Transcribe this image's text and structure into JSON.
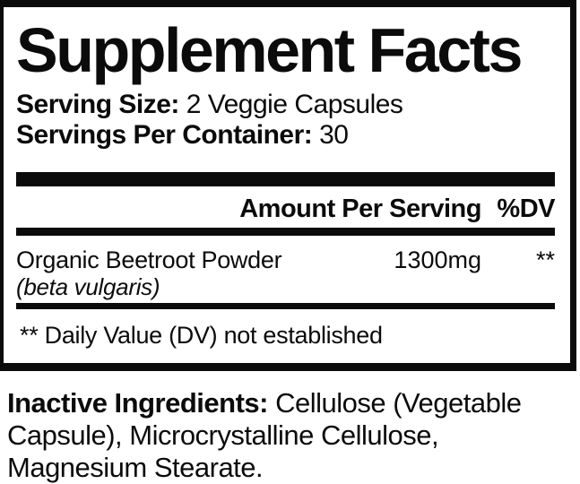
{
  "panel": {
    "title": "Supplement Facts",
    "serving_size": {
      "label": "Serving Size:",
      "value": "2 Veggie Capsules"
    },
    "servings_per_container": {
      "label": "Servings Per Container:",
      "value": "30"
    },
    "header": {
      "amount": "Amount Per Serving",
      "dv": "%DV"
    },
    "rows": [
      {
        "name": "Organic Beetroot Powder",
        "latin": "(beta vulgaris)",
        "amount": "1300mg",
        "dv": "**"
      }
    ],
    "footnote": "** Daily Value (DV) not established"
  },
  "inactive_ingredients": {
    "label": "Inactive Ingredients:",
    "value": "Cellulose (Vegetable Capsule), Microcrystalline Cellulose, Magnesium Stearate."
  },
  "colors": {
    "ink": "#0b0b0b",
    "background": "#ffffff"
  }
}
